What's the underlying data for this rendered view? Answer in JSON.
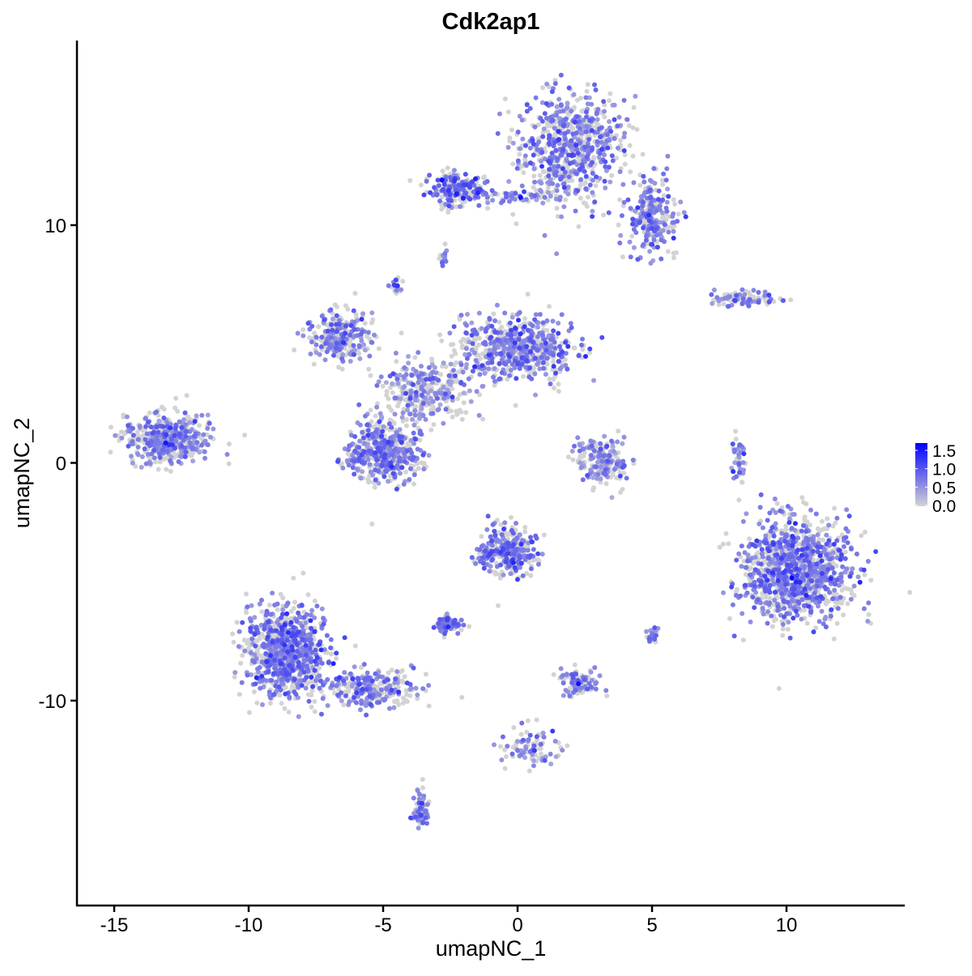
{
  "chart_data": {
    "type": "scatter",
    "title": "Cdk2ap1",
    "xlabel": "umapNC_1",
    "ylabel": "umapNC_2",
    "xlim": [
      -16.4,
      14.4
    ],
    "ylim": [
      -18.4,
      17.6
    ],
    "xticks": [
      -15,
      -10,
      -5,
      0,
      5,
      10
    ],
    "yticks": [
      -10,
      0,
      10
    ],
    "xtick_labels": [
      "-15",
      "-10",
      "-5",
      "0",
      "5",
      "10"
    ],
    "ytick_labels": [
      "-10",
      "0",
      "10"
    ],
    "grid": false,
    "color_scale": {
      "low": "#d3d3d3",
      "high": "#0000ff",
      "min": 0.0,
      "max": 1.7,
      "ticks": [
        "1.5",
        "1.0",
        "0.5",
        "0.0"
      ],
      "tick_values": [
        1.5,
        1.0,
        0.5,
        0.0
      ],
      "legend_position": "right"
    },
    "clusters_approx": [
      {
        "cx": 2.0,
        "cy": 13.3,
        "sx": 1.2,
        "sy": 1.4,
        "n": 700,
        "mean_expr": 0.45
      },
      {
        "cx": 5.0,
        "cy": 10.3,
        "sx": 0.6,
        "sy": 1.0,
        "n": 250,
        "mean_expr": 0.45
      },
      {
        "cx": -2.3,
        "cy": 11.5,
        "sx": 0.8,
        "sy": 0.45,
        "n": 200,
        "mean_expr": 0.6
      },
      {
        "cx": 0.2,
        "cy": 11.2,
        "sx": 1.0,
        "sy": 0.15,
        "n": 60,
        "mean_expr": 0.4
      },
      {
        "cx": -6.6,
        "cy": 5.3,
        "sx": 0.8,
        "sy": 0.6,
        "n": 250,
        "mean_expr": 0.45
      },
      {
        "cx": 0.0,
        "cy": 4.8,
        "sx": 1.3,
        "sy": 0.8,
        "n": 600,
        "mean_expr": 0.45
      },
      {
        "cx": -3.5,
        "cy": 3.0,
        "sx": 1.0,
        "sy": 0.8,
        "n": 300,
        "mean_expr": 0.35
      },
      {
        "cx": -5.0,
        "cy": 0.5,
        "sx": 0.9,
        "sy": 0.8,
        "n": 450,
        "mean_expr": 0.45
      },
      {
        "cx": -13.0,
        "cy": 1.0,
        "sx": 1.0,
        "sy": 0.6,
        "n": 450,
        "mean_expr": 0.4
      },
      {
        "cx": 8.3,
        "cy": 6.9,
        "sx": 0.9,
        "sy": 0.2,
        "n": 90,
        "mean_expr": 0.45
      },
      {
        "cx": 3.2,
        "cy": 0.0,
        "sx": 0.6,
        "sy": 0.6,
        "n": 200,
        "mean_expr": 0.3
      },
      {
        "cx": 8.2,
        "cy": 0.3,
        "sx": 0.15,
        "sy": 0.7,
        "n": 40,
        "mean_expr": 0.4
      },
      {
        "cx": 10.3,
        "cy": -4.5,
        "sx": 1.25,
        "sy": 1.3,
        "n": 1100,
        "mean_expr": 0.5
      },
      {
        "cx": -8.6,
        "cy": -8.0,
        "sx": 0.9,
        "sy": 1.1,
        "n": 900,
        "mean_expr": 0.5
      },
      {
        "cx": -5.5,
        "cy": -9.5,
        "sx": 1.0,
        "sy": 0.5,
        "n": 250,
        "mean_expr": 0.45
      },
      {
        "cx": -3.6,
        "cy": -14.6,
        "sx": 0.2,
        "sy": 0.6,
        "n": 60,
        "mean_expr": 0.5
      },
      {
        "cx": -0.4,
        "cy": -3.7,
        "sx": 0.7,
        "sy": 0.6,
        "n": 300,
        "mean_expr": 0.55
      },
      {
        "cx": -2.6,
        "cy": -6.8,
        "sx": 0.35,
        "sy": 0.25,
        "n": 70,
        "mean_expr": 0.5
      },
      {
        "cx": 2.3,
        "cy": -9.2,
        "sx": 0.45,
        "sy": 0.35,
        "n": 90,
        "mean_expr": 0.45
      },
      {
        "cx": 0.5,
        "cy": -11.9,
        "sx": 0.8,
        "sy": 0.5,
        "n": 90,
        "mean_expr": 0.4
      },
      {
        "cx": 5.0,
        "cy": -7.3,
        "sx": 0.15,
        "sy": 0.2,
        "n": 25,
        "mean_expr": 0.5
      },
      {
        "cx": -4.5,
        "cy": 7.4,
        "sx": 0.15,
        "sy": 0.2,
        "n": 20,
        "mean_expr": 0.6
      },
      {
        "cx": -2.8,
        "cy": 8.6,
        "sx": 0.15,
        "sy": 0.2,
        "n": 15,
        "mean_expr": 0.5
      }
    ]
  }
}
